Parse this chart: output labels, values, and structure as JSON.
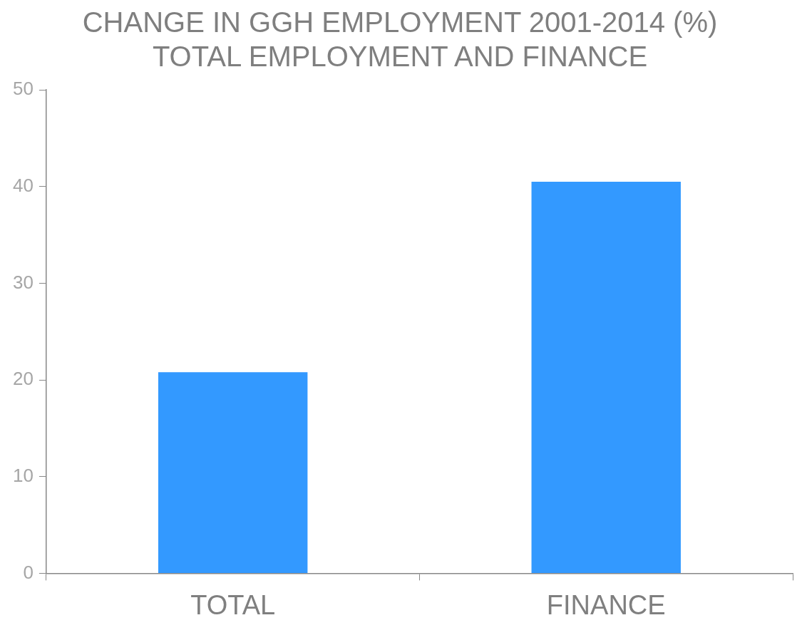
{
  "chart_data": {
    "type": "bar",
    "title": "CHANGE IN GGH EMPLOYMENT 2001-2014 (%)\nTOTAL EMPLOYMENT AND FINANCE",
    "categories": [
      "TOTAL",
      "FINANCE"
    ],
    "values": [
      20.8,
      40.5
    ],
    "color": "#3399ff",
    "ylim": [
      0,
      50
    ],
    "yticks": [
      0,
      10,
      20,
      30,
      40,
      50
    ],
    "grid": false,
    "legend": false
  }
}
